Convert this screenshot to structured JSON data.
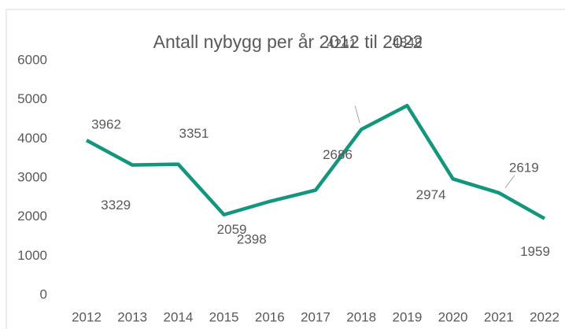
{
  "chart_data": {
    "type": "line",
    "title": "Antall nybygg per år 2012 til 2022",
    "categories": [
      "2012",
      "2013",
      "2014",
      "2015",
      "2016",
      "2017",
      "2018",
      "2019",
      "2020",
      "2021",
      "2022"
    ],
    "series": [
      {
        "name": "Antall nybygg",
        "color": "#13967d",
        "values": [
          3962,
          3329,
          3351,
          2059,
          2398,
          2686,
          4241,
          4849,
          2974,
          2619,
          1959
        ]
      }
    ],
    "ylim": [
      0,
      6000
    ],
    "yticks": [
      0,
      1000,
      2000,
      3000,
      4000,
      5000,
      6000
    ],
    "grid": false
  }
}
